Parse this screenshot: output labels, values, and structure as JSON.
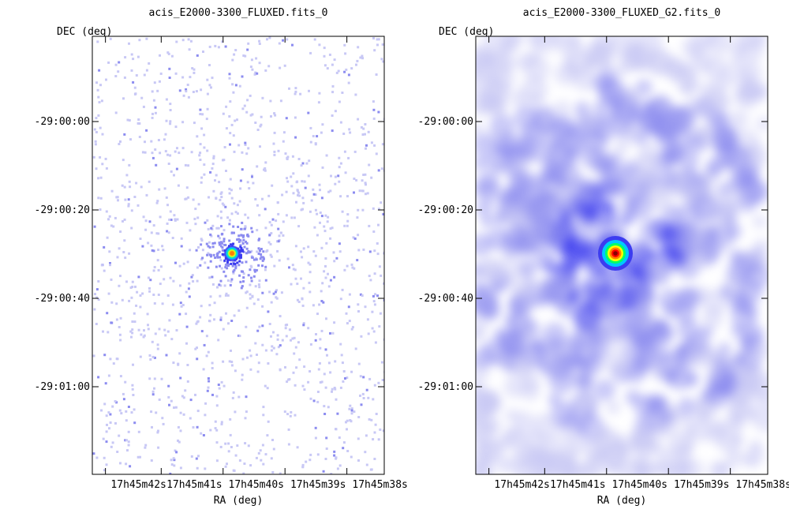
{
  "chart_data": [
    {
      "type": "heatmap",
      "title": "acis_E2000-3300_FLUXED.fits_0",
      "xlabel": "RA (deg)",
      "ylabel": "DEC (deg)",
      "x_ticks": [
        "17h45m42s",
        "17h45m41s",
        "17h45m40s",
        "17h45m39s",
        "17h45m38s"
      ],
      "y_ticks": [
        "-29:00:00",
        "-29:00:20",
        "-29:00:40",
        "-29:01:00"
      ],
      "colormap": [
        "#ffffff",
        "#c8c8f5",
        "#8c8cf0",
        "#3c3cf0",
        "#00c8ff",
        "#00ff64",
        "#ffff00",
        "#ff8000",
        "#ff0000",
        "#8b0000"
      ],
      "source_peak_level": 0.82,
      "grid": false
    },
    {
      "type": "heatmap",
      "title": "acis_E2000-3300_FLUXED_G2.fits_0",
      "xlabel": "RA (deg)",
      "ylabel": "DEC (deg)",
      "x_ticks": [
        "17h45m42s",
        "17h45m41s",
        "17h45m40s",
        "17h45m39s",
        "17h45m38s"
      ],
      "y_ticks": [
        "-29:00:00",
        "-29:00:20",
        "-29:00:40",
        "-29:01:00"
      ],
      "colormap": [
        "#ffffff",
        "#c8c8f5",
        "#8c8cf0",
        "#3c3cf0",
        "#00c8ff",
        "#00ff64",
        "#ffff00",
        "#ff8000",
        "#ff0000",
        "#8b0000"
      ],
      "source_peak_level": 1.0,
      "grid": false
    }
  ]
}
